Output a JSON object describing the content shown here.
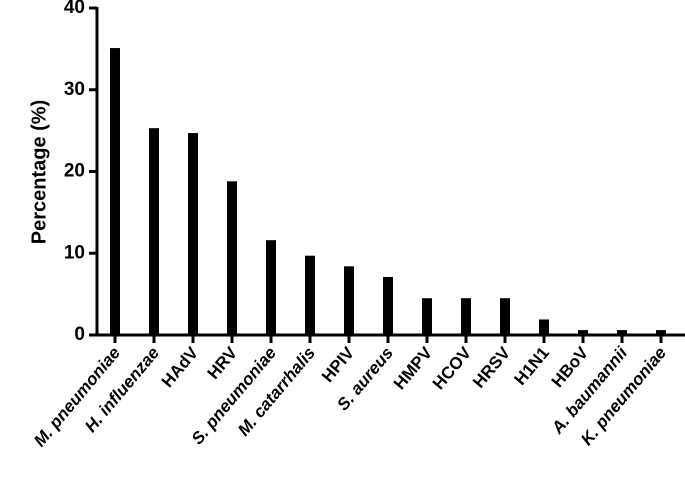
{
  "chart_data": {
    "type": "bar",
    "y_label": "Percentage (%)",
    "categories": [
      "M. pneumoniae",
      "H. influenzae",
      "HAdV",
      "HRV",
      "S. pneumoniae",
      "M. catarrhalis",
      "HPIV",
      "S. aureus",
      "HMPV",
      "HCOV",
      "HRSV",
      "H1N1",
      "HBoV",
      "A. baumannii",
      "K. pneumoniae"
    ],
    "values": [
      35.1,
      25.3,
      24.7,
      18.8,
      11.6,
      9.7,
      8.4,
      7.1,
      4.5,
      4.5,
      4.5,
      1.9,
      0.6,
      0.6,
      0.6
    ],
    "color": "#000000",
    "ylim": [
      0,
      40
    ],
    "yticks": [
      0,
      10,
      20,
      30,
      40
    ],
    "grid": false
  }
}
